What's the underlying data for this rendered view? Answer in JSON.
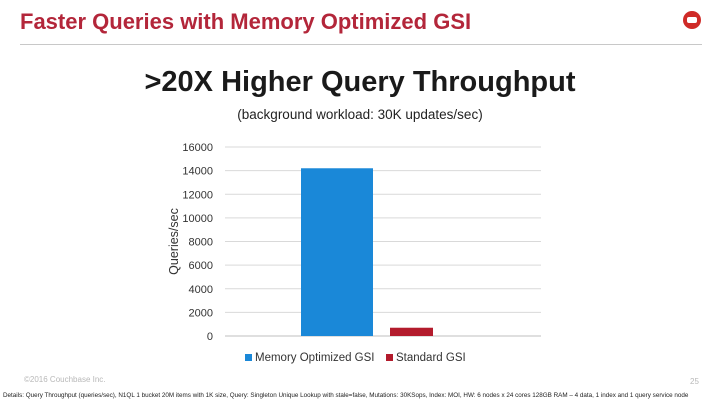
{
  "header": {
    "title": "Faster Queries with Memory Optimized GSI"
  },
  "headline": ">20X Higher Query Throughput",
  "subtitle": "(background workload: 30K updates/sec)",
  "colors": {
    "brand": "#b3263a",
    "memory_optimized_gsi": "#1a88d8",
    "standard_gsi": "#b31b2c",
    "logo": "#cf2a27"
  },
  "chart_data": {
    "type": "bar",
    "title": "",
    "xlabel": "",
    "ylabel": "Queries/sec",
    "ylim": [
      0,
      16000
    ],
    "yticks": [
      0,
      2000,
      4000,
      6000,
      8000,
      10000,
      12000,
      14000,
      16000
    ],
    "ytick_labels": [
      "0",
      "2000",
      "4000",
      "6000",
      "8000",
      "10000",
      "12000",
      "14000",
      "16000"
    ],
    "grid": true,
    "legend_position": "bottom",
    "series": [
      {
        "name": "Memory Optimized GSI",
        "values": [
          14200
        ],
        "color": "#1a88d8"
      },
      {
        "name": "Standard GSI",
        "values": [
          700
        ],
        "color": "#b31b2c"
      }
    ]
  },
  "footer": {
    "copyright": "©2016 Couchbase Inc.",
    "page_number": "25",
    "details": "Details: Query Throughput (queries/sec), N1QL 1 bucket 20M items with 1K size, Query: Singleton Unique Lookup with stale=false, Mutations: 30KSops, Index: MOI, HW: 6 nodes x 24 cores 128GB RAM – 4 data, 1 index and 1 query service node"
  }
}
